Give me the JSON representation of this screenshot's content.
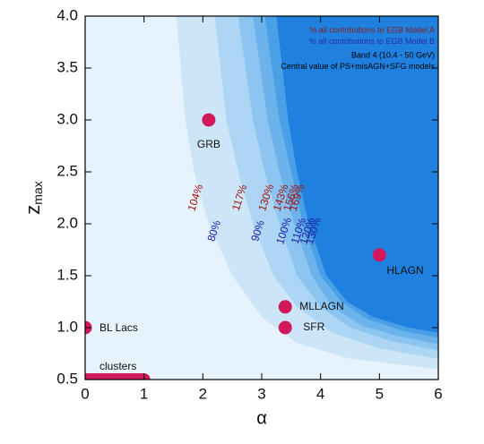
{
  "chart_data": {
    "type": "contour",
    "x_label": "α",
    "y_label": {
      "base": "z",
      "sub": "max"
    },
    "xlim": [
      0,
      6
    ],
    "ylim": [
      0.5,
      4.0
    ],
    "xticks": [
      0,
      1,
      2,
      3,
      4,
      5,
      6
    ],
    "yticks": [
      0.5,
      {
        "value": 1,
        "label": "1.0"
      },
      1.5,
      {
        "value": 2,
        "label": "2.0"
      },
      2.5,
      {
        "value": 3,
        "label": "3.0"
      },
      3.5,
      {
        "value": 4,
        "label": "4.0"
      }
    ],
    "background": "#e6f3fc",
    "legend_texts": [
      {
        "text": "% all contributions to EGB Model A",
        "color": "#8b1a1a"
      },
      {
        "text": "% all contributions to EGB Model B",
        "color": "#2a2aa0"
      },
      {
        "text": "Band 4 (10.4 - 50 GeV)",
        "color": "#000000"
      },
      {
        "text": "Central value of PS+misAGN+SFG models",
        "color": "#000000"
      }
    ],
    "contours": [
      {
        "label_a": "104%",
        "label_b": "80%",
        "color": "#cce6f8",
        "x": [
          1.55,
          1.7,
          1.85,
          2.1,
          2.5,
          3.0,
          3.6,
          4.5,
          6
        ],
        "y": [
          4.0,
          3.0,
          2.5,
          2.0,
          1.5,
          1.1,
          0.85,
          0.7,
          0.6
        ]
      },
      {
        "label_a": "117%",
        "label_b": "90%",
        "color": "#acd6f4",
        "x": [
          2.2,
          2.4,
          2.6,
          2.85,
          3.2,
          3.6,
          4.2,
          5,
          6
        ],
        "y": [
          4.0,
          3.0,
          2.5,
          2.0,
          1.5,
          1.2,
          0.95,
          0.8,
          0.7
        ]
      },
      {
        "label_a": "130%",
        "label_b": "100%",
        "color": "#8cc5f0",
        "x": [
          2.6,
          2.85,
          3.05,
          3.3,
          3.6,
          4.0,
          4.5,
          5.2,
          6
        ],
        "y": [
          4.0,
          3.0,
          2.5,
          2.0,
          1.5,
          1.2,
          1.0,
          0.87,
          0.78
        ]
      },
      {
        "label_a": "143%",
        "label_b": "110%",
        "color": "#6cb3eb",
        "x": [
          2.85,
          3.1,
          3.3,
          3.55,
          3.85,
          4.2,
          4.7,
          5.3,
          6
        ],
        "y": [
          4.0,
          3.0,
          2.5,
          2.0,
          1.5,
          1.2,
          1.02,
          0.92,
          0.84
        ]
      },
      {
        "label_a": "156%",
        "label_b": "120%",
        "color": "#4aa0e6",
        "x": [
          3.05,
          3.3,
          3.5,
          3.7,
          4.0,
          4.35,
          4.8,
          5.4,
          6
        ],
        "y": [
          4.0,
          3.0,
          2.5,
          2.0,
          1.5,
          1.25,
          1.08,
          0.97,
          0.9
        ]
      },
      {
        "label_a": "169%",
        "label_b": "130%",
        "color": "#1f80e0",
        "x": [
          3.25,
          3.45,
          3.6,
          3.8,
          4.1,
          4.45,
          4.9,
          5.5,
          6
        ],
        "y": [
          4.0,
          3.0,
          2.5,
          2.0,
          1.5,
          1.25,
          1.1,
          1.0,
          0.95
        ]
      }
    ],
    "points": {
      "color": "#d0185a",
      "x": [
        0,
        2.1,
        3.4,
        3.4,
        5.0
      ],
      "y": [
        1.0,
        3.0,
        1.2,
        1.0,
        1.7
      ],
      "labels": [
        "BL Lacs",
        "GRB",
        "MLLAGN",
        "SFR",
        "HLAGN"
      ]
    },
    "clusters": {
      "label": "clusters",
      "color": "#d0185a",
      "x": [
        0,
        1
      ],
      "y": 0.5
    }
  }
}
